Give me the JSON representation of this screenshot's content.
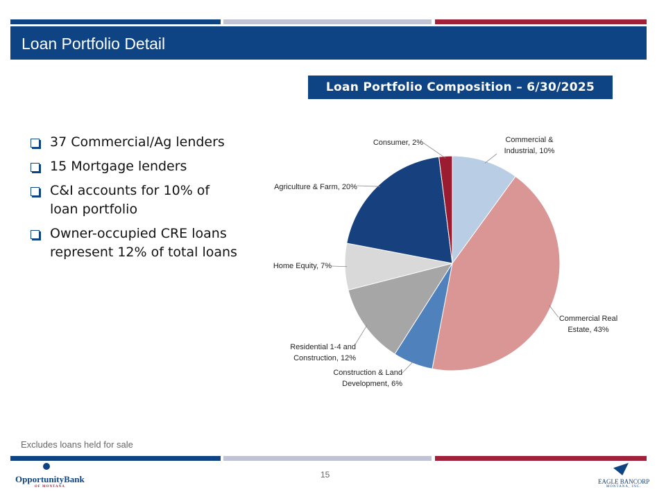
{
  "header": {
    "title": "Loan Portfolio Detail"
  },
  "bullets": [
    "37 Commercial/Ag lenders",
    "15 Mortgage lenders",
    "C&I accounts for 10% of loan portfolio",
    "Owner-occupied CRE loans represent 12% of total loans"
  ],
  "footnote": "Excludes loans held for sale",
  "page_number": "15",
  "logos": {
    "left": "OpportunityBank",
    "left_sub": "OF MONTANA",
    "right": "EAGLE BANCORP",
    "right_sub": "MONTANA, INC."
  },
  "chart_data": {
    "type": "pie",
    "title": "Loan Portfolio Composition – 6/30/2025",
    "categories": [
      "Commercial & Industrial",
      "Commercial Real Estate",
      "Construction & Land Development",
      "Residential 1-4 and Construction",
      "Home Equity",
      "Agriculture & Farm",
      "Consumer"
    ],
    "values": [
      10,
      43,
      6,
      12,
      7,
      20,
      2
    ],
    "value_labels": [
      "10%",
      "43%",
      "6%",
      "12%",
      "7%",
      "20%",
      "2%"
    ],
    "colors": [
      "#b9cde5",
      "#d99694",
      "#4f81bd",
      "#a6a6a6",
      "#d9d9d9",
      "#17407e",
      "#9b1c31"
    ]
  }
}
